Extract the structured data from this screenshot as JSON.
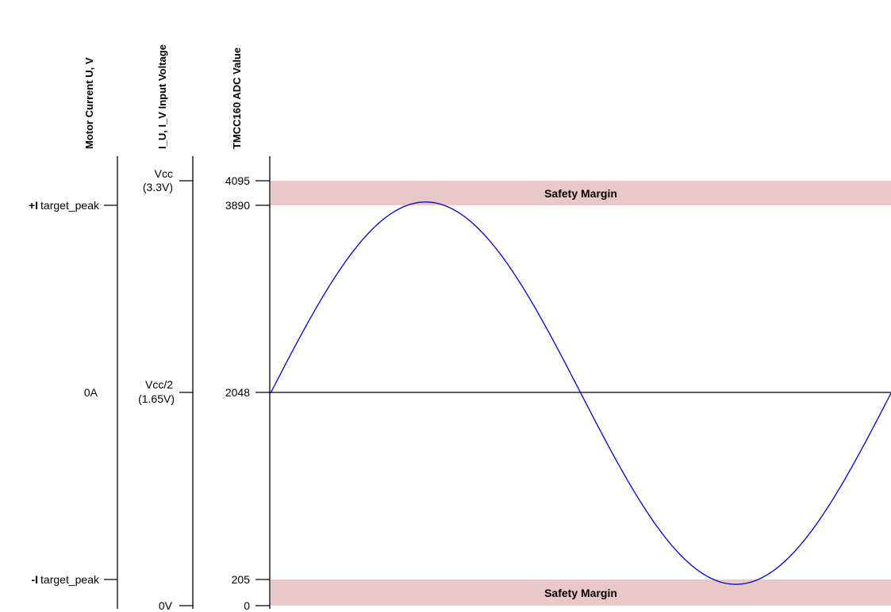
{
  "axes": {
    "current": {
      "title": "Motor Current U, V",
      "top_prefix": "+I",
      "top_label": "target_peak",
      "mid_label": "0A",
      "bottom_prefix": "-I",
      "bottom_label": "target_peak"
    },
    "voltage": {
      "title": "I_U, I_V Input Voltage",
      "top_label_1": "Vcc",
      "top_label_2": "(3.3V)",
      "mid_label_1": "Vcc/2",
      "mid_label_2": "(1.65V)",
      "bottom_label": "0V"
    },
    "adc": {
      "title": "TMCC160 ADC Value",
      "ticks": [
        "4095",
        "3890",
        "2048",
        "205",
        "0"
      ]
    }
  },
  "safety_band_label": "Safety Margin",
  "colors": {
    "safety_band": "#ebc8c8",
    "sine_wave": "#0000dd",
    "axis": "#000000"
  },
  "chart_data": {
    "type": "line",
    "series": [
      {
        "name": "",
        "function": "sine",
        "offset": 2048,
        "amplitude": 1842,
        "periods": 1
      }
    ],
    "ylim": [
      0,
      4095
    ],
    "safety_bands": [
      [
        3890,
        4095
      ],
      [
        0,
        205
      ]
    ]
  }
}
